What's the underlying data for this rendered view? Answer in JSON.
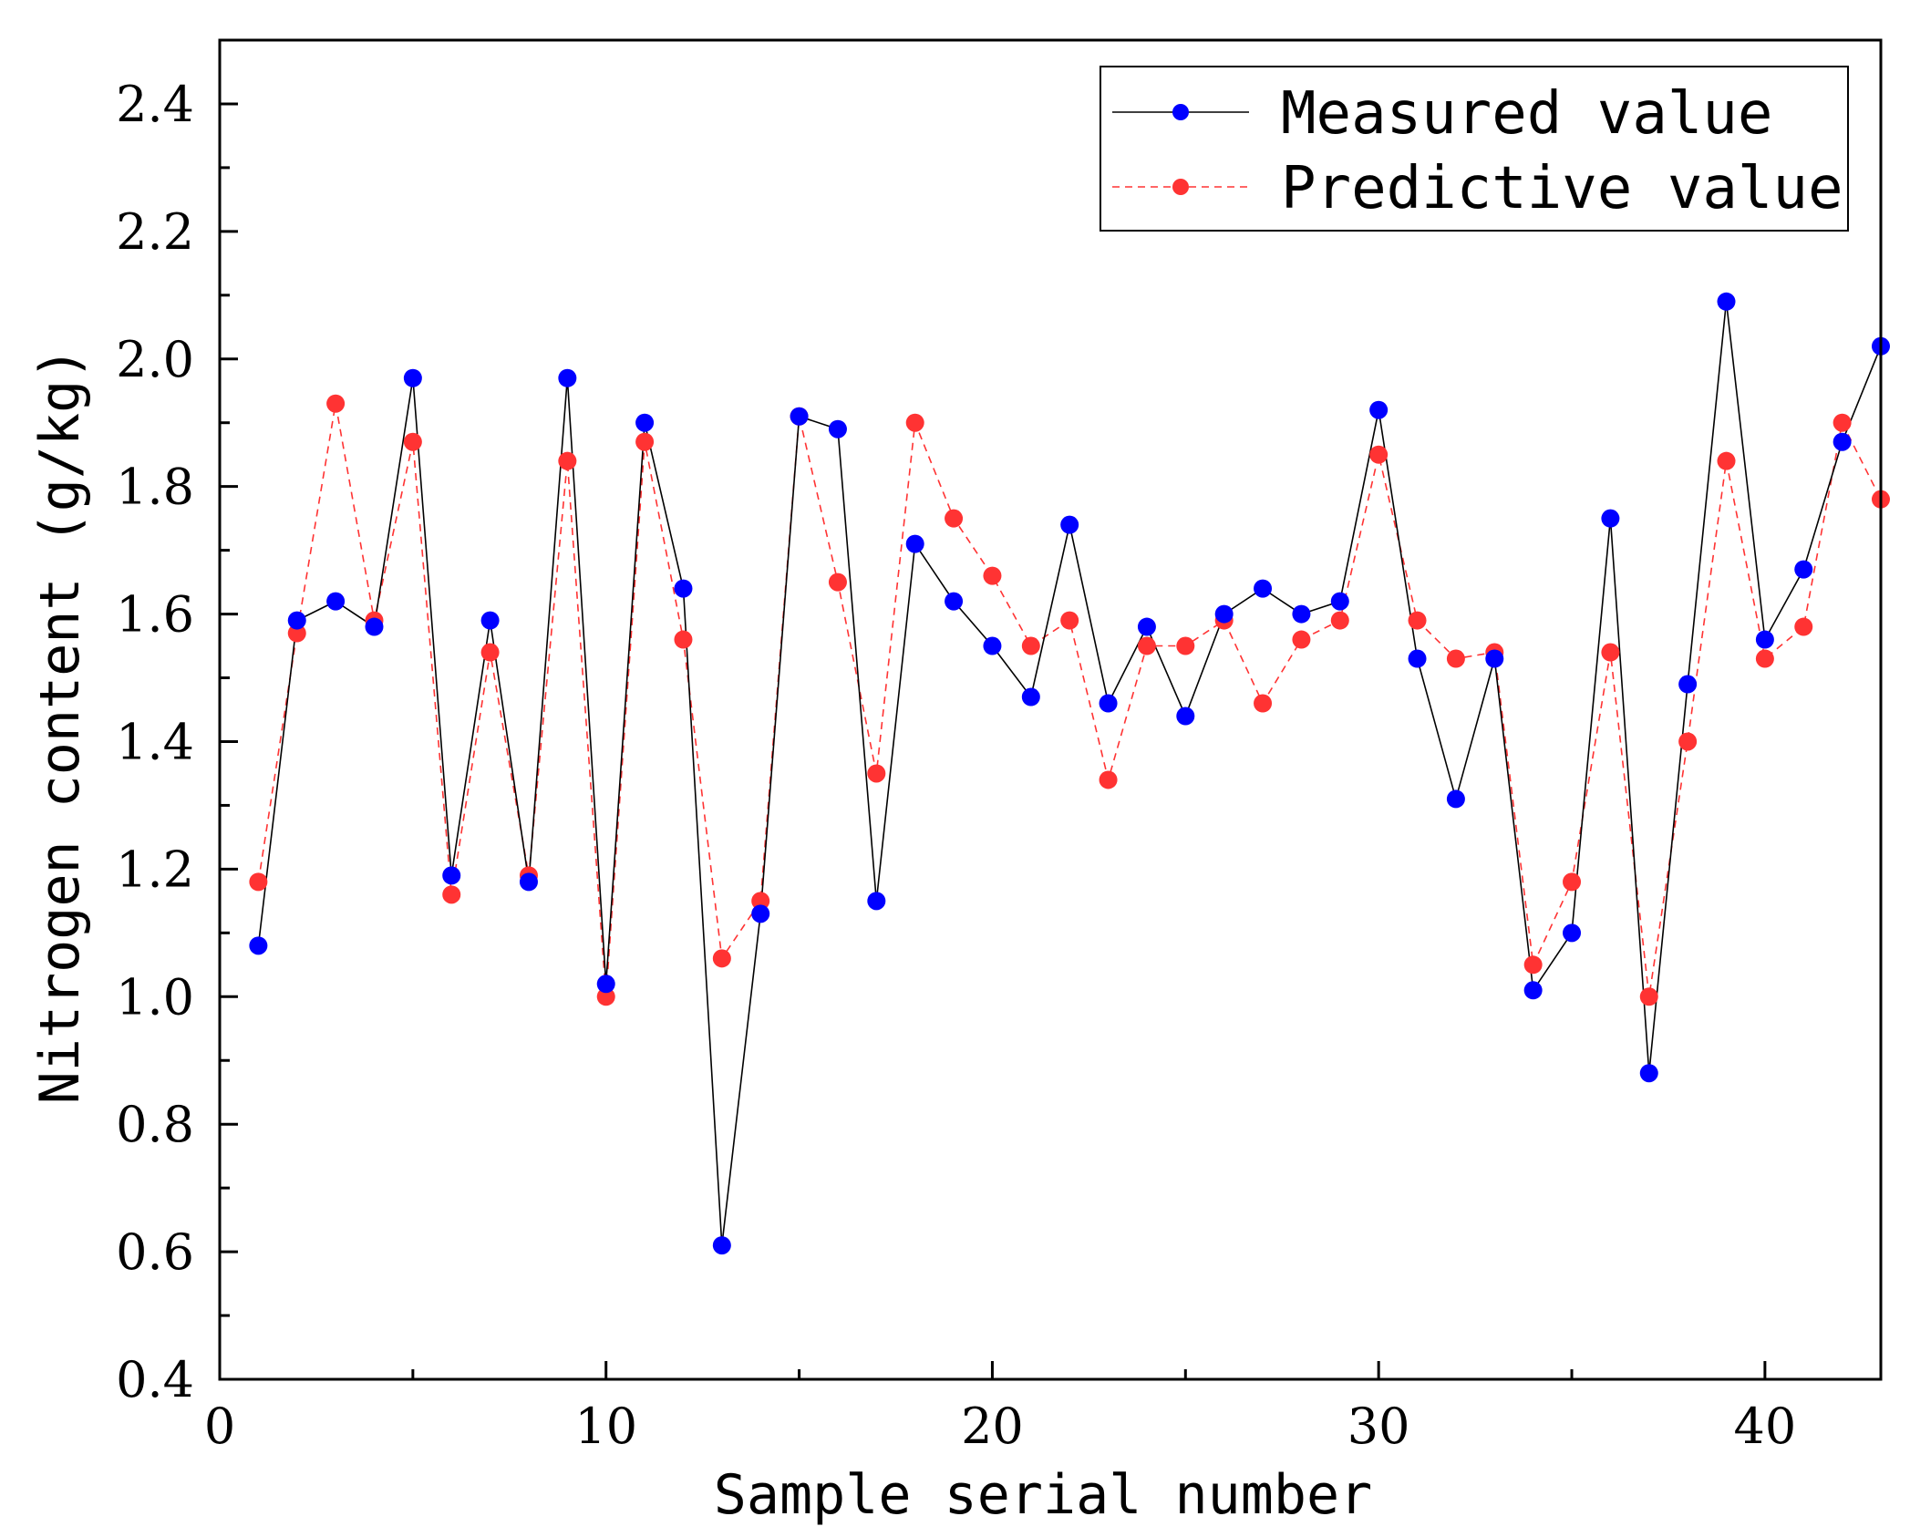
{
  "chart_data": {
    "type": "line",
    "title": "",
    "xlabel": "Sample serial number",
    "ylabel": "Nitrogen content (g/kg)",
    "xlim": [
      0,
      43
    ],
    "ylim": [
      0.4,
      2.5
    ],
    "x_ticks": [
      0,
      10,
      20,
      30,
      40
    ],
    "x_tick_labels": [
      "0",
      "10",
      "20",
      "30",
      "40"
    ],
    "y_ticks": [
      0.4,
      0.6,
      0.8,
      1.0,
      1.2,
      1.4,
      1.6,
      1.8,
      2.0,
      2.2,
      2.4
    ],
    "y_tick_labels": [
      "0.4",
      "0.6",
      "0.8",
      "1.0",
      "1.2",
      "1.4",
      "1.6",
      "1.8",
      "2.0",
      "2.2",
      "2.4"
    ],
    "grid": false,
    "legend_position": "top-right",
    "x": [
      1,
      2,
      3,
      4,
      5,
      6,
      7,
      8,
      9,
      10,
      11,
      12,
      13,
      14,
      15,
      16,
      17,
      18,
      19,
      20,
      21,
      22,
      23,
      24,
      25,
      26,
      27,
      28,
      29,
      30,
      31,
      32,
      33,
      34,
      35,
      36,
      37,
      38,
      39,
      40,
      41,
      42,
      43
    ],
    "series": [
      {
        "name": "Measured value",
        "color": "#0000ff",
        "line_color": "#000000",
        "line_style": "solid",
        "values": [
          1.08,
          1.59,
          1.62,
          1.58,
          1.97,
          1.19,
          1.59,
          1.18,
          1.97,
          1.02,
          1.9,
          1.64,
          0.61,
          1.13,
          1.91,
          1.89,
          1.15,
          1.71,
          1.62,
          1.55,
          1.47,
          1.74,
          1.46,
          1.58,
          1.44,
          1.6,
          1.64,
          1.6,
          1.62,
          1.92,
          1.53,
          1.31,
          1.53,
          1.01,
          1.1,
          1.75,
          0.88,
          1.49,
          2.09,
          1.56,
          1.67,
          1.87,
          2.02
        ]
      },
      {
        "name": "Predictive value",
        "color": "#ff3333",
        "line_color": "#ff3333",
        "line_style": "dashed",
        "values": [
          1.18,
          1.57,
          1.93,
          1.59,
          1.87,
          1.16,
          1.54,
          1.19,
          1.84,
          1.0,
          1.87,
          1.56,
          1.06,
          1.15,
          1.91,
          1.65,
          1.35,
          1.9,
          1.75,
          1.66,
          1.55,
          1.59,
          1.34,
          1.55,
          1.55,
          1.59,
          1.46,
          1.56,
          1.59,
          1.85,
          1.59,
          1.53,
          1.54,
          1.05,
          1.18,
          1.54,
          1.0,
          1.4,
          1.84,
          1.53,
          1.58,
          1.9,
          1.78
        ]
      }
    ]
  }
}
